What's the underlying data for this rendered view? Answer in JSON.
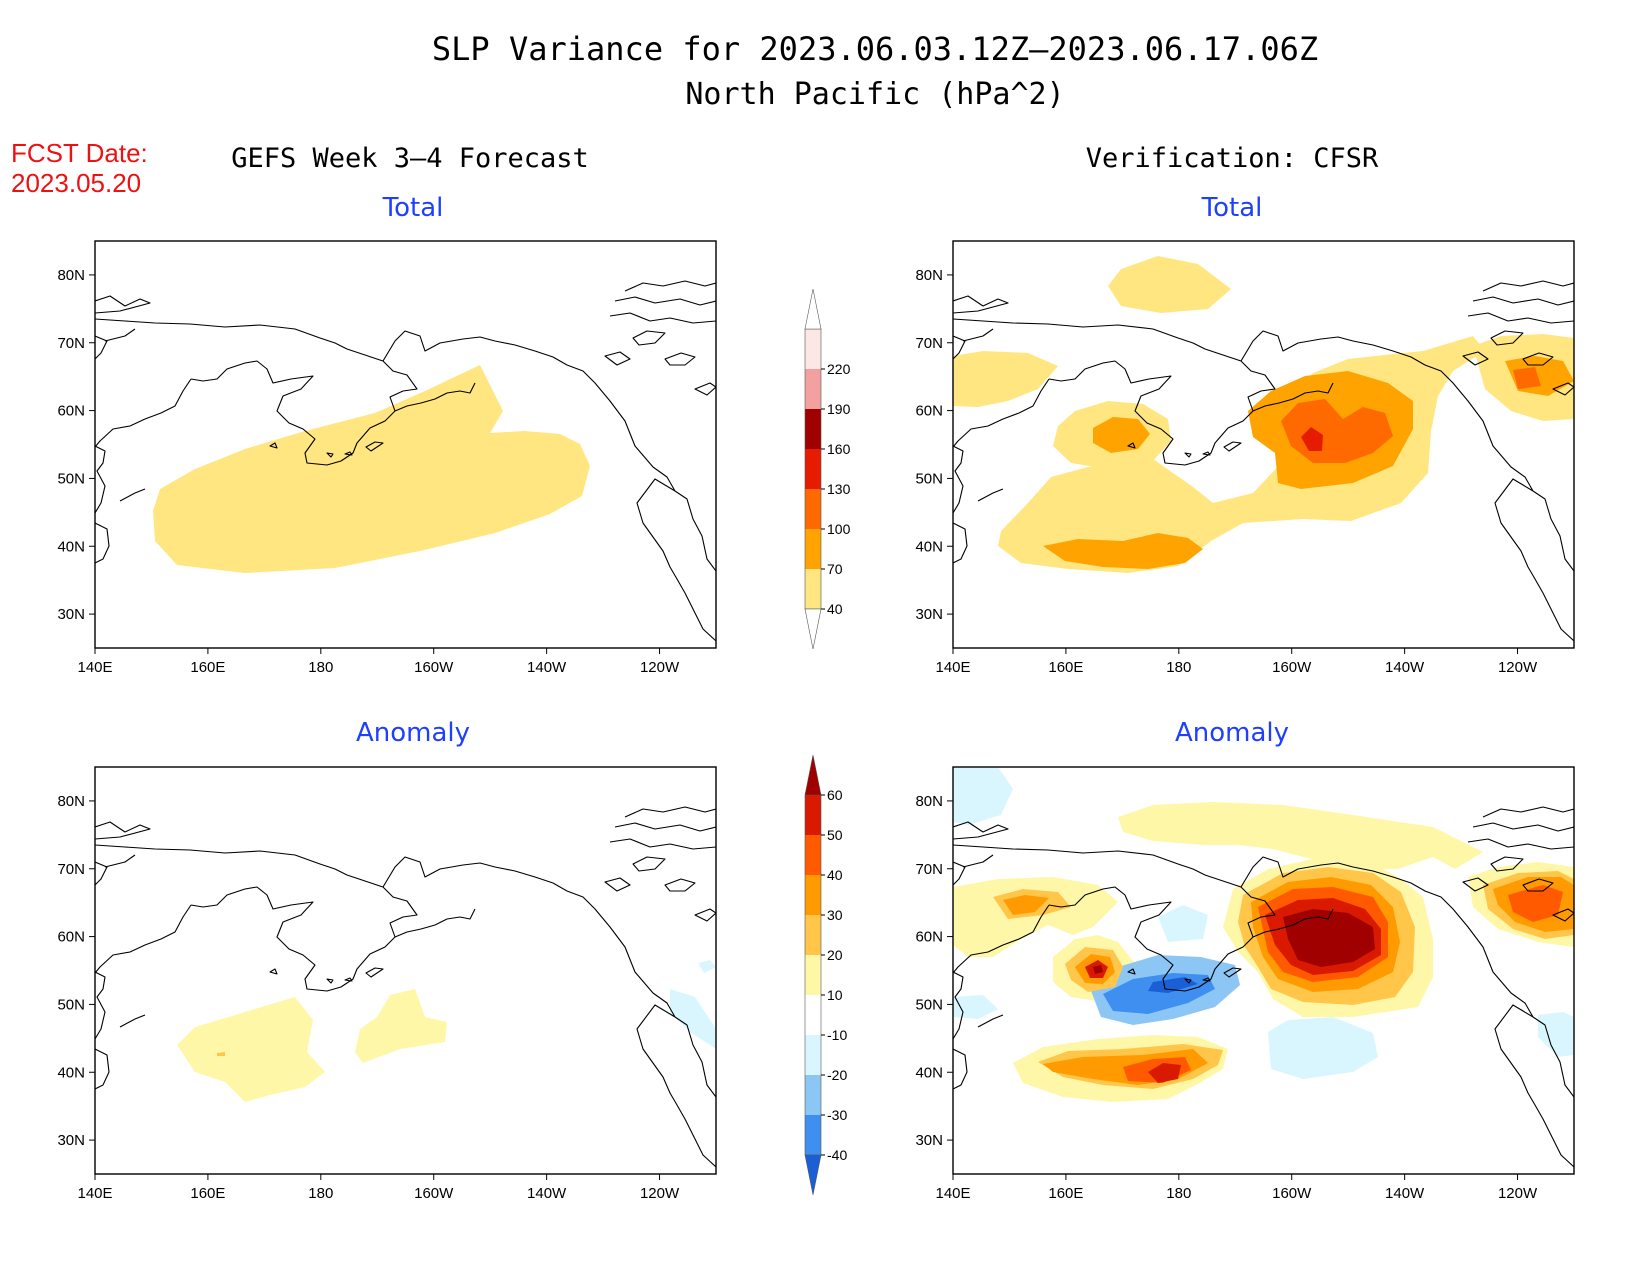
{
  "header": {
    "title_line1": "SLP Variance for 2023.06.03.12Z–2023.06.17.06Z",
    "title_line2": "North Pacific (hPa^2)",
    "fcst_label": "FCST Date:",
    "fcst_date": "2023.05.20",
    "left_column_title": "GEFS Week 3–4 Forecast",
    "right_column_title": "Verification: CFSR"
  },
  "panels": [
    {
      "key": "fc_total",
      "subtitle": "Total"
    },
    {
      "key": "vf_total",
      "subtitle": "Total"
    },
    {
      "key": "fc_anom",
      "subtitle": "Anomaly"
    },
    {
      "key": "vf_anom",
      "subtitle": "Anomaly"
    }
  ],
  "axes": {
    "lon_labels": [
      "140E",
      "160E",
      "180",
      "160W",
      "140W",
      "120W"
    ],
    "lon_values": [
      140,
      160,
      180,
      200,
      220,
      240
    ],
    "lat_labels": [
      "30N",
      "40N",
      "50N",
      "60N",
      "70N",
      "80N"
    ],
    "lat_values": [
      30,
      40,
      50,
      60,
      70,
      80
    ],
    "lon_range": [
      140,
      250
    ],
    "lat_range": [
      25,
      85
    ]
  },
  "colorbars": {
    "total": {
      "labels": [
        "40",
        "70",
        "100",
        "130",
        "160",
        "190",
        "220"
      ],
      "colors": [
        "#ffe680",
        "#ffa300",
        "#ff6a00",
        "#e61c00",
        "#a10000",
        "#f2a0a0",
        "#fde6e6"
      ]
    },
    "anomaly": {
      "labels": [
        "-40",
        "-30",
        "-20",
        "-10",
        "10",
        "20",
        "30",
        "40",
        "50",
        "60"
      ],
      "colors": [
        "#1a5fd6",
        "#3f8ff0",
        "#8cc6f5",
        "#d9f6ff",
        "#ffffff",
        "#fff7a8",
        "#ffc64a",
        "#ff9a00",
        "#ff5a00",
        "#d91a00",
        "#a00000"
      ]
    }
  }
}
